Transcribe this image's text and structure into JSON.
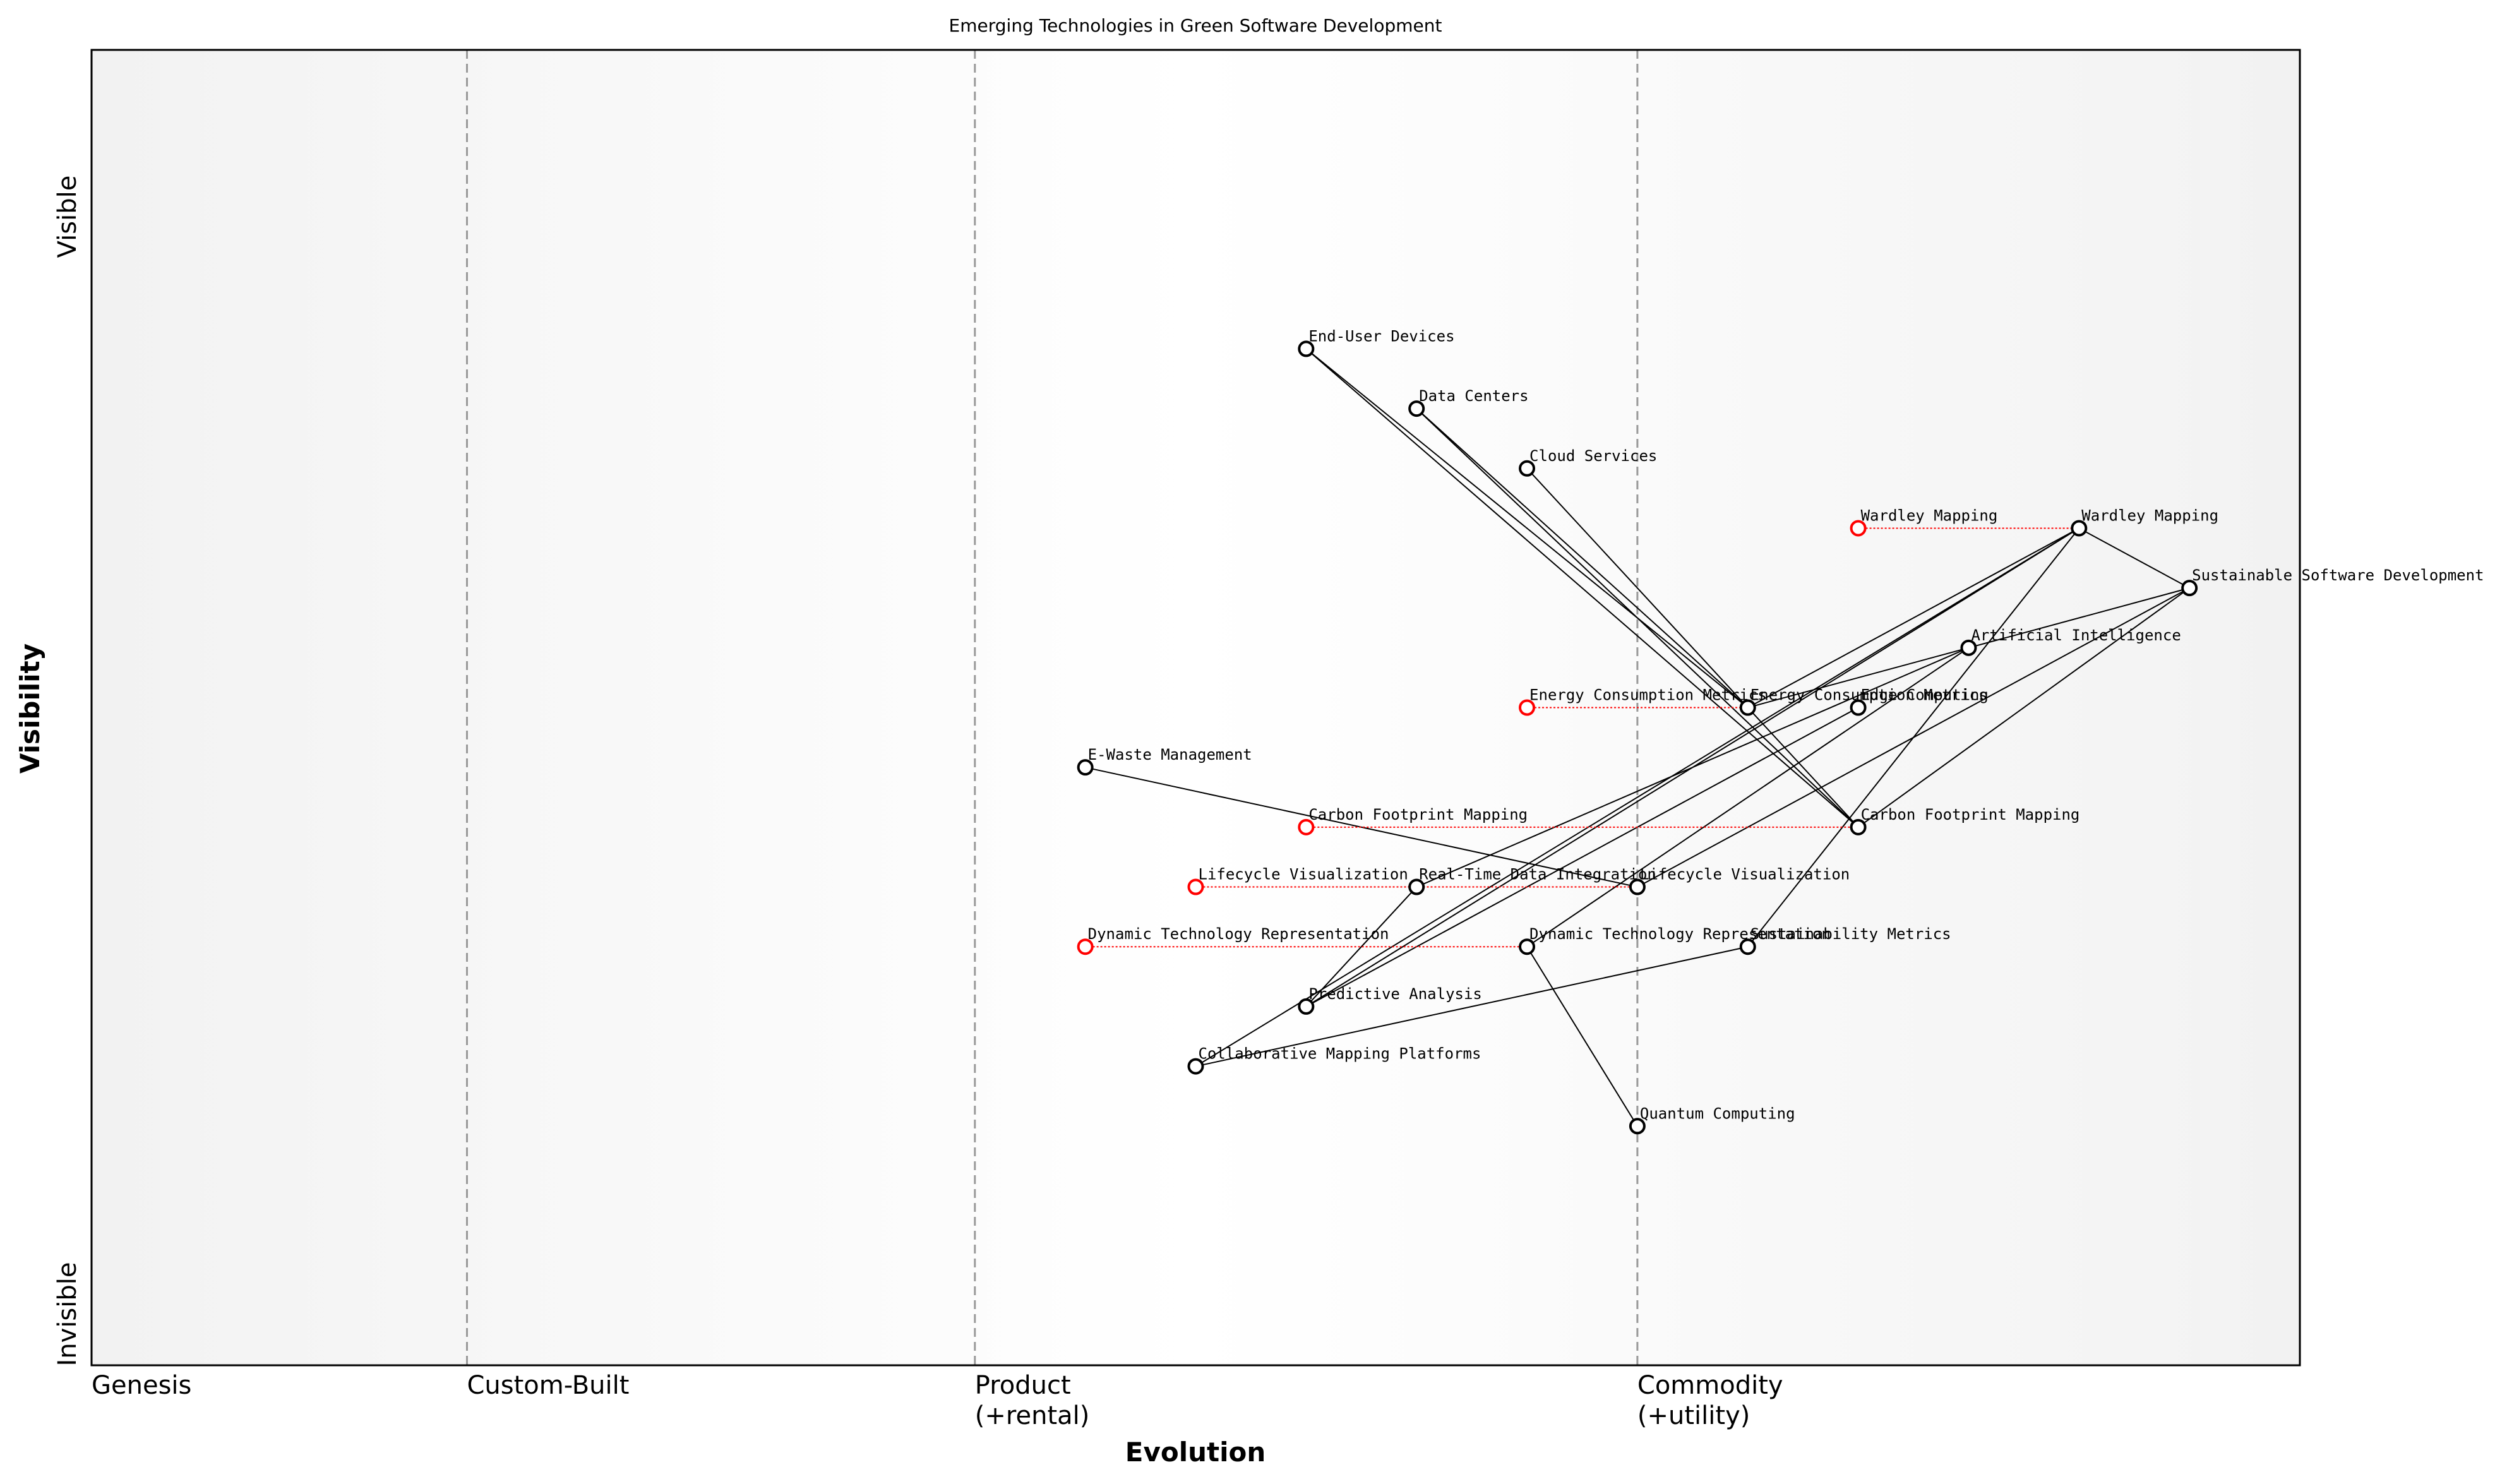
{
  "chart_data": {
    "type": "wardley",
    "title": "Emerging Technologies in Green Software Development",
    "x_label": "Evolution",
    "y_label": "Visibility",
    "y_top_label": "Visible",
    "y_bottom_label": "Invisible",
    "xlim": [
      0,
      1
    ],
    "ylim": [
      0,
      1.1
    ],
    "xticks": [
      {
        "value": 0,
        "label": "Genesis"
      },
      {
        "value": 0.17,
        "label": "Custom-Built"
      },
      {
        "value": 0.4,
        "label": "Product\n(+rental)"
      },
      {
        "value": 0.7,
        "label": "Commodity\n(+utility)"
      }
    ],
    "node_color": "#000000",
    "evolve_color": "#ff0000",
    "nodes": [
      {
        "name": "End-User Devices",
        "evolution": 0.55,
        "visibility": 0.85
      },
      {
        "name": "Data Centers",
        "evolution": 0.6,
        "visibility": 0.8
      },
      {
        "name": "Cloud Services",
        "evolution": 0.65,
        "visibility": 0.75
      },
      {
        "name": "Wardley Mapping",
        "evolution": 0.9,
        "visibility": 0.7,
        "evolve_from": 0.8
      },
      {
        "name": "Sustainable Software Development",
        "evolution": 0.95,
        "visibility": 0.65
      },
      {
        "name": "Artificial Intelligence",
        "evolution": 0.85,
        "visibility": 0.6
      },
      {
        "name": "Energy Consumption Metrics",
        "evolution": 0.75,
        "visibility": 0.55,
        "evolve_from": 0.65
      },
      {
        "name": "Edge Computing",
        "evolution": 0.8,
        "visibility": 0.55
      },
      {
        "name": "E-Waste Management",
        "evolution": 0.45,
        "visibility": 0.5
      },
      {
        "name": "Carbon Footprint Mapping",
        "evolution": 0.8,
        "visibility": 0.45,
        "evolve_from": 0.55
      },
      {
        "name": "Lifecycle Visualization",
        "evolution": 0.7,
        "visibility": 0.4,
        "evolve_from": 0.5
      },
      {
        "name": "Real-Time Data Integration",
        "evolution": 0.6,
        "visibility": 0.4
      },
      {
        "name": "Dynamic Technology Representation",
        "evolution": 0.65,
        "visibility": 0.35,
        "evolve_from": 0.45
      },
      {
        "name": "Sustainability Metrics",
        "evolution": 0.75,
        "visibility": 0.35
      },
      {
        "name": "Predictive Analysis",
        "evolution": 0.55,
        "visibility": 0.3
      },
      {
        "name": "Collaborative Mapping Platforms",
        "evolution": 0.5,
        "visibility": 0.25
      },
      {
        "name": "Quantum Computing",
        "evolution": 0.7,
        "visibility": 0.2
      }
    ],
    "links": [
      [
        "End-User Devices",
        "Energy Consumption Metrics"
      ],
      [
        "End-User Devices",
        "Carbon Footprint Mapping"
      ],
      [
        "Data Centers",
        "Energy Consumption Metrics"
      ],
      [
        "Data Centers",
        "Carbon Footprint Mapping"
      ],
      [
        "Cloud Services",
        "Carbon Footprint Mapping"
      ],
      [
        "Wardley Mapping",
        "Sustainable Software Development"
      ],
      [
        "Wardley Mapping",
        "Energy Consumption Metrics"
      ],
      [
        "Wardley Mapping",
        "Predictive Analysis"
      ],
      [
        "Wardley Mapping",
        "Collaborative Mapping Platforms"
      ],
      [
        "Wardley Mapping",
        "Sustainability Metrics"
      ],
      [
        "Sustainable Software Development",
        "Carbon Footprint Mapping"
      ],
      [
        "Sustainable Software Development",
        "Lifecycle Visualization"
      ],
      [
        "Sustainable Software Development",
        "Energy Consumption Metrics"
      ],
      [
        "Artificial Intelligence",
        "Real-Time Data Integration"
      ],
      [
        "Artificial Intelligence",
        "Dynamic Technology Representation"
      ],
      [
        "Edge Computing",
        "Predictive Analysis"
      ],
      [
        "E-Waste Management",
        "Lifecycle Visualization"
      ],
      [
        "Dynamic Technology Representation",
        "Quantum Computing"
      ],
      [
        "Collaborative Mapping Platforms",
        "Sustainability Metrics"
      ],
      [
        "Real-Time Data Integration",
        "Predictive Analysis"
      ]
    ]
  }
}
